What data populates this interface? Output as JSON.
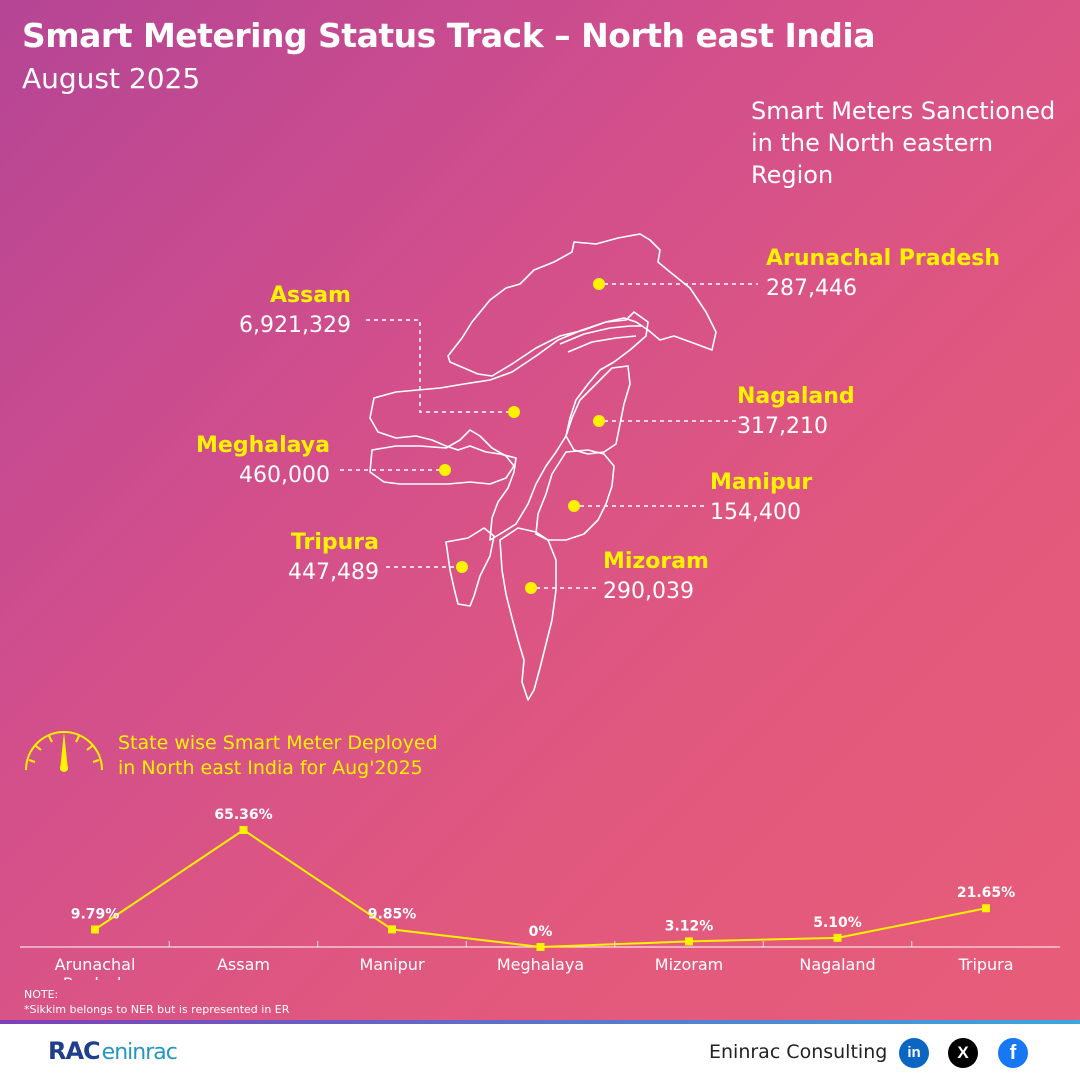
{
  "header": {
    "title": "Smart Metering Status Track – North east India",
    "subtitle": "August 2025"
  },
  "sanctioned": {
    "title": "Smart Meters Sanctioned in the North eastern Region",
    "states": [
      {
        "name": "Arunachal Pradesh",
        "value": "287,446"
      },
      {
        "name": "Assam",
        "value": "6,921,329"
      },
      {
        "name": "Nagaland",
        "value": "317,210"
      },
      {
        "name": "Meghalaya",
        "value": "460,000"
      },
      {
        "name": "Manipur",
        "value": "154,400"
      },
      {
        "name": "Tripura",
        "value": "447,489"
      },
      {
        "name": "Mizoram",
        "value": "290,039"
      }
    ]
  },
  "chart_data": {
    "type": "line",
    "title": "State wise Smart Meter Deployed in North east India for Aug'2025",
    "categories": [
      "Arunachal Pradesh",
      "Assam",
      "Manipur",
      "Meghalaya",
      "Mizoram",
      "Nagaland",
      "Tripura"
    ],
    "values": [
      9.79,
      65.36,
      9.85,
      0,
      3.12,
      5.1,
      21.65
    ],
    "data_labels": [
      "9.79%",
      "65.36%",
      "9.85%",
      "0%",
      "3.12%",
      "5.10%",
      "21.65%"
    ],
    "ylim": [
      0,
      65.36
    ],
    "grid": false,
    "line_color": "#fff200"
  },
  "notes": {
    "label": "NOTE:",
    "text": "*Sikkim belongs to NER but is represented in ER"
  },
  "footer": {
    "logo_main": "RAC",
    "logo_sub": "eninrac",
    "company": "Eninrac Consulting",
    "social": [
      {
        "name": "linkedin-icon",
        "glyph": "in"
      },
      {
        "name": "x-icon",
        "glyph": "X"
      },
      {
        "name": "facebook-icon",
        "glyph": "f"
      }
    ]
  }
}
